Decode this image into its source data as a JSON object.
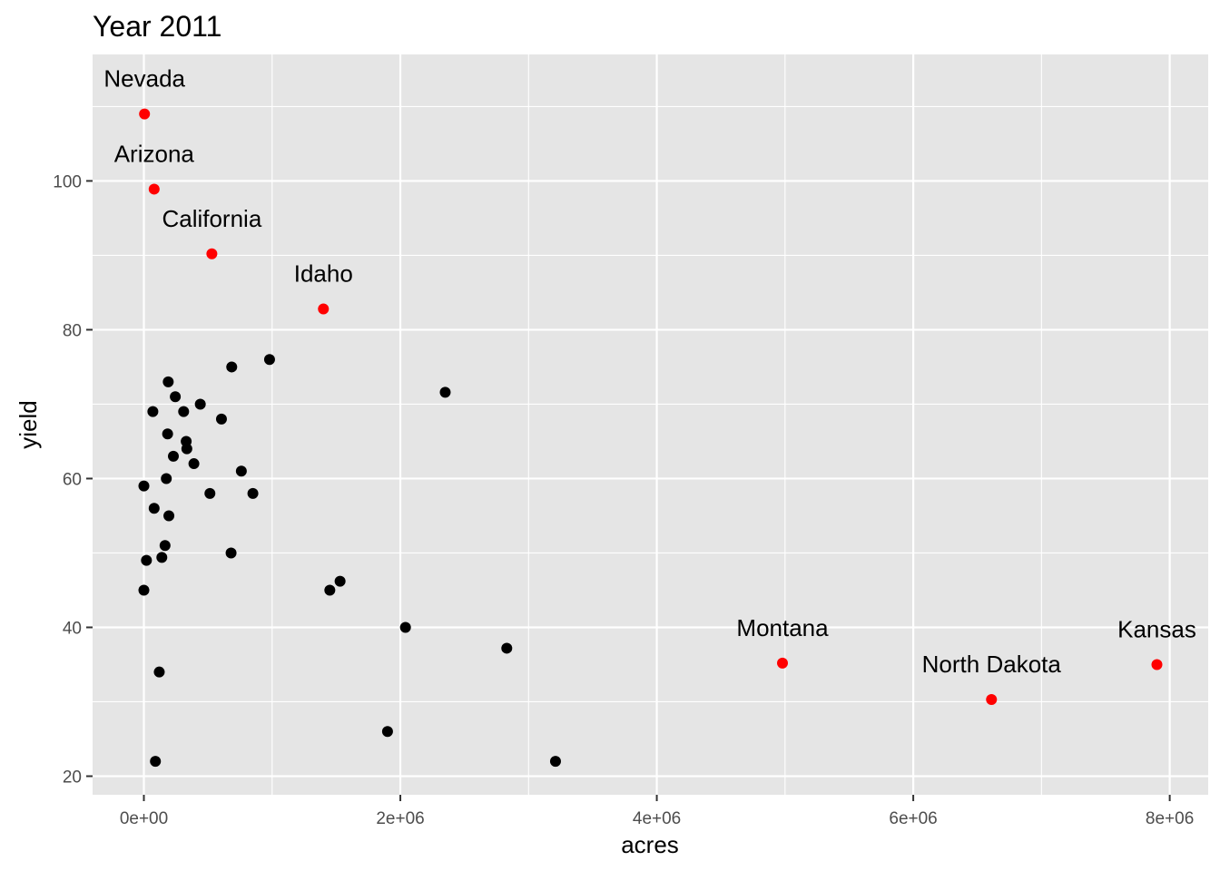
{
  "chart_data": {
    "type": "scatter",
    "title": "Year 2011",
    "xlabel": "acres",
    "ylabel": "yield",
    "xlim": [
      -400000,
      8300000
    ],
    "ylim": [
      17.5,
      117
    ],
    "x_ticks": [
      {
        "value": 0,
        "label": "0e+00"
      },
      {
        "value": 2000000,
        "label": "2e+06"
      },
      {
        "value": 4000000,
        "label": "4e+06"
      },
      {
        "value": 6000000,
        "label": "6e+06"
      },
      {
        "value": 8000000,
        "label": "8e+06"
      }
    ],
    "y_ticks": [
      {
        "value": 20,
        "label": "20"
      },
      {
        "value": 40,
        "label": "40"
      },
      {
        "value": 60,
        "label": "60"
      },
      {
        "value": 80,
        "label": "80"
      },
      {
        "value": 100,
        "label": "100"
      }
    ],
    "grid": true,
    "panel_background": "#e5e5e5",
    "grid_color": "#ffffff",
    "point_color": "#000000",
    "highlight_color": "#ff0000",
    "points": [
      {
        "x": 0,
        "y": 59
      },
      {
        "x": 0,
        "y": 45
      },
      {
        "x": 20000,
        "y": 49
      },
      {
        "x": 70000,
        "y": 69
      },
      {
        "x": 80000,
        "y": 56
      },
      {
        "x": 90000,
        "y": 22
      },
      {
        "x": 120000,
        "y": 34
      },
      {
        "x": 140000,
        "y": 49.4
      },
      {
        "x": 165000,
        "y": 51
      },
      {
        "x": 175000,
        "y": 60
      },
      {
        "x": 185000,
        "y": 66
      },
      {
        "x": 190000,
        "y": 73
      },
      {
        "x": 195000,
        "y": 55
      },
      {
        "x": 230000,
        "y": 63
      },
      {
        "x": 245000,
        "y": 71
      },
      {
        "x": 310000,
        "y": 69
      },
      {
        "x": 330000,
        "y": 65
      },
      {
        "x": 335000,
        "y": 64
      },
      {
        "x": 390000,
        "y": 62
      },
      {
        "x": 440000,
        "y": 70
      },
      {
        "x": 515000,
        "y": 58
      },
      {
        "x": 605000,
        "y": 68
      },
      {
        "x": 680000,
        "y": 50
      },
      {
        "x": 685000,
        "y": 75
      },
      {
        "x": 760000,
        "y": 61
      },
      {
        "x": 850000,
        "y": 58
      },
      {
        "x": 980000,
        "y": 76
      },
      {
        "x": 1450000,
        "y": 45
      },
      {
        "x": 1530000,
        "y": 46.2
      },
      {
        "x": 1900000,
        "y": 26
      },
      {
        "x": 2040000,
        "y": 40
      },
      {
        "x": 2350000,
        "y": 71.6
      },
      {
        "x": 2830000,
        "y": 37.2
      },
      {
        "x": 3210000,
        "y": 22
      }
    ],
    "highlighted": [
      {
        "label": "Nevada",
        "x": 5000,
        "y": 109
      },
      {
        "label": "Arizona",
        "x": 80000,
        "y": 98.9
      },
      {
        "label": "California",
        "x": 530000,
        "y": 90.2
      },
      {
        "label": "Idaho",
        "x": 1400000,
        "y": 82.8
      },
      {
        "label": "Montana",
        "x": 4980000,
        "y": 35.2
      },
      {
        "label": "North Dakota",
        "x": 6610000,
        "y": 30.3
      },
      {
        "label": "Kansas",
        "x": 7900000,
        "y": 35
      }
    ]
  }
}
